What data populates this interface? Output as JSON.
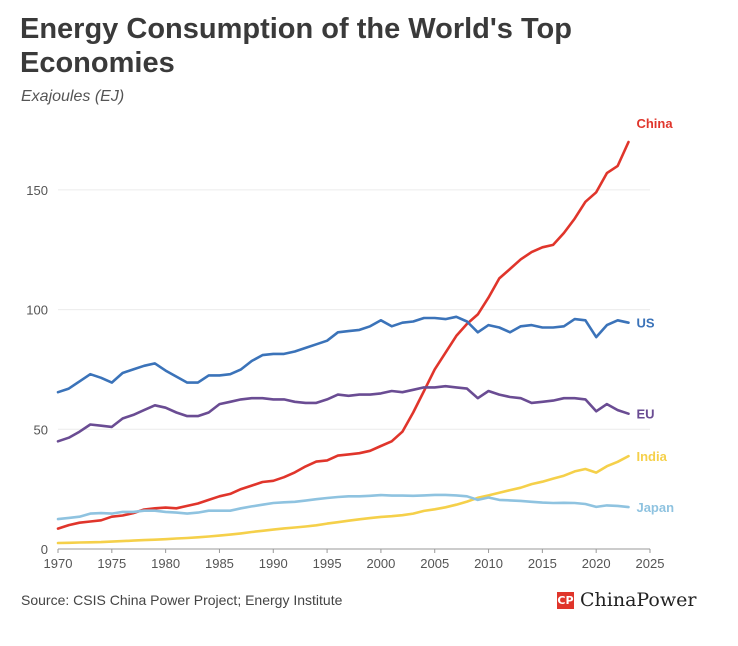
{
  "header": {
    "title": "Energy Consumption of the World's Top Economies",
    "subtitle": "Exajoules (EJ)"
  },
  "footer": {
    "source": "Source: CSIS China Power Project; Energy Institute",
    "brand": "ChinaPower",
    "brand_mark": "CP"
  },
  "colors": {
    "china": "#e0352b",
    "us": "#3b73b9",
    "eu": "#6a4c93",
    "india": "#f5d04a",
    "japan": "#8fc3e0",
    "grid": "#ececec",
    "axis": "#999999"
  },
  "chart_data": {
    "type": "line",
    "xlim": [
      1970,
      2025
    ],
    "ylim": [
      0,
      175
    ],
    "xticks": [
      1970,
      1975,
      1980,
      1985,
      1990,
      1995,
      2000,
      2005,
      2010,
      2015,
      2020,
      2025
    ],
    "yticks": [
      0,
      50,
      100,
      150
    ],
    "grid": "horizontal",
    "legend": "inline-right",
    "x": [
      1970,
      1971,
      1972,
      1973,
      1974,
      1975,
      1976,
      1977,
      1978,
      1979,
      1980,
      1981,
      1982,
      1983,
      1984,
      1985,
      1986,
      1987,
      1988,
      1989,
      1990,
      1991,
      1992,
      1993,
      1994,
      1995,
      1996,
      1997,
      1998,
      1999,
      2000,
      2001,
      2002,
      2003,
      2004,
      2005,
      2006,
      2007,
      2008,
      2009,
      2010,
      2011,
      2012,
      2013,
      2014,
      2015,
      2016,
      2017,
      2018,
      2019,
      2020,
      2021,
      2022,
      2023
    ],
    "series": [
      {
        "name": "China",
        "key": "china",
        "values": [
          8.5,
          10,
          11,
          11.5,
          12,
          13.5,
          14,
          15,
          16.5,
          17,
          17.3,
          17,
          18,
          19,
          20.5,
          22,
          23,
          25,
          26.5,
          28,
          28.5,
          30,
          32,
          34.5,
          36.5,
          37,
          39,
          39.5,
          40,
          41,
          43,
          45,
          49,
          57,
          66,
          75,
          82,
          89,
          94,
          98,
          105,
          113,
          117,
          121,
          124,
          126,
          127,
          132,
          138,
          145,
          149,
          157,
          160,
          170
        ]
      },
      {
        "name": "US",
        "key": "us",
        "values": [
          65.5,
          67,
          70,
          73,
          71.5,
          69.5,
          73.5,
          75,
          76.5,
          77.5,
          74.5,
          72,
          69.5,
          69.5,
          72.5,
          72.5,
          73,
          75,
          78.5,
          81,
          81.5,
          81.5,
          82.5,
          84,
          85.5,
          87,
          90.5,
          91,
          91.5,
          93,
          95.5,
          93,
          94.5,
          95,
          96.5,
          96.5,
          96,
          97,
          95,
          90.5,
          93.5,
          92.5,
          90.5,
          93,
          93.5,
          92.5,
          92.5,
          93,
          96,
          95.5,
          88.5,
          93.5,
          95.5,
          94.5
        ]
      },
      {
        "name": "EU",
        "key": "eu",
        "values": [
          45,
          46.5,
          49,
          52,
          51.5,
          51,
          54.5,
          56,
          58,
          60,
          59,
          57,
          55.5,
          55.5,
          57,
          60.5,
          61.5,
          62.5,
          63,
          63,
          62.5,
          62.5,
          61.5,
          61,
          61,
          62.5,
          64.5,
          64,
          64.5,
          64.5,
          65,
          66,
          65.5,
          66.5,
          67.5,
          67.5,
          68,
          67.5,
          67,
          63,
          66,
          64.5,
          63.5,
          63,
          61,
          61.5,
          62,
          63,
          63,
          62.5,
          57.5,
          60.5,
          58,
          56.5
        ]
      },
      {
        "name": "India",
        "key": "india",
        "values": [
          2.5,
          2.6,
          2.7,
          2.8,
          2.9,
          3.1,
          3.3,
          3.5,
          3.7,
          3.9,
          4.1,
          4.4,
          4.6,
          4.9,
          5.2,
          5.6,
          6,
          6.5,
          7.1,
          7.6,
          8.1,
          8.6,
          9,
          9.4,
          9.9,
          10.6,
          11.2,
          11.8,
          12.4,
          12.9,
          13.4,
          13.7,
          14.1,
          14.8,
          15.9,
          16.6,
          17.4,
          18.5,
          19.8,
          21.4,
          22.4,
          23.5,
          24.6,
          25.6,
          27.1,
          28.1,
          29.4,
          30.6,
          32.4,
          33.4,
          31.9,
          34.6,
          36.4,
          38.8
        ]
      },
      {
        "name": "Japan",
        "key": "japan",
        "values": [
          12.5,
          13,
          13.5,
          14.8,
          15,
          14.8,
          15.5,
          15.5,
          16,
          16,
          15.5,
          15.2,
          14.8,
          15.2,
          16,
          16,
          16,
          17,
          17.8,
          18.5,
          19.2,
          19.5,
          19.7,
          20.2,
          20.8,
          21.3,
          21.7,
          22,
          22,
          22.2,
          22.5,
          22.3,
          22.3,
          22.2,
          22.4,
          22.6,
          22.6,
          22.4,
          22,
          20.5,
          21.5,
          20.5,
          20.3,
          20.1,
          19.7,
          19.4,
          19.2,
          19.3,
          19.2,
          18.8,
          17.6,
          18.2,
          18,
          17.5
        ]
      }
    ]
  }
}
